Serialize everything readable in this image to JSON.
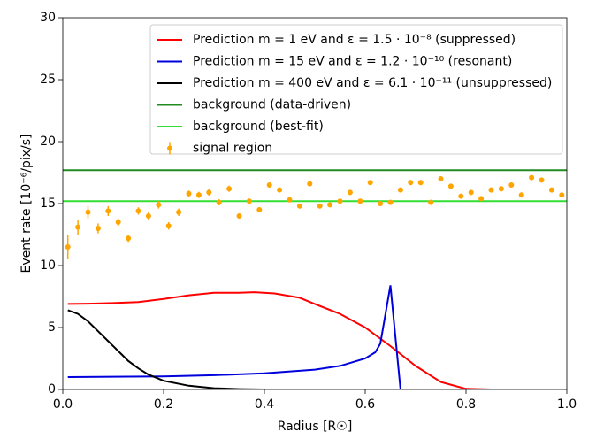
{
  "chart_data": {
    "type": "line",
    "xlabel": "Radius [R☉]",
    "ylabel": "Event rate [10⁻⁶/pix/s]",
    "xlim": [
      0,
      1
    ],
    "ylim": [
      0,
      30
    ],
    "xticks": [
      {
        "value": 0,
        "label": "0.0"
      },
      0.2,
      0.4,
      0.6,
      0.8,
      {
        "value": 1,
        "label": "1.0"
      }
    ],
    "yticks": [
      0,
      5,
      10,
      15,
      20,
      25,
      30
    ],
    "legend": "upper right",
    "series": [
      {
        "name": "Prediction m = 1 eV and ε = 1.5 · 10⁻⁸ (suppressed)",
        "color": "#ff0000",
        "x": [
          0.01,
          0.05,
          0.1,
          0.15,
          0.2,
          0.25,
          0.3,
          0.35,
          0.38,
          0.42,
          0.47,
          0.5,
          0.55,
          0.6,
          0.65,
          0.7,
          0.75,
          0.8,
          0.85,
          1.0
        ],
        "values": [
          6.9,
          6.92,
          6.97,
          7.05,
          7.3,
          7.6,
          7.8,
          7.8,
          7.85,
          7.75,
          7.4,
          6.9,
          6.1,
          5.0,
          3.5,
          1.9,
          0.6,
          0.05,
          0,
          0
        ]
      },
      {
        "name": "Prediction m = 15 eV and ε = 1.2 · 10⁻¹⁰ (resonant)",
        "color": "#0000dd",
        "x": [
          0.01,
          0.2,
          0.3,
          0.4,
          0.5,
          0.55,
          0.6,
          0.62,
          0.63,
          0.65,
          0.67
        ],
        "values": [
          1.0,
          1.05,
          1.15,
          1.3,
          1.6,
          1.9,
          2.5,
          3.0,
          3.7,
          8.4,
          0
        ]
      },
      {
        "name": "Prediction m = 400 eV and ε = 6.1 · 10⁻¹¹ (unsuppressed)",
        "color": "#000000",
        "x": [
          0.01,
          0.03,
          0.05,
          0.07,
          0.09,
          0.11,
          0.13,
          0.15,
          0.17,
          0.2,
          0.25,
          0.3,
          0.35,
          0.4,
          1.0
        ],
        "values": [
          6.4,
          6.1,
          5.5,
          4.7,
          3.9,
          3.1,
          2.3,
          1.7,
          1.2,
          0.7,
          0.3,
          0.1,
          0.03,
          0,
          0
        ]
      },
      {
        "name": "background (data-driven)",
        "color": "#228b22",
        "x": [
          0,
          1
        ],
        "values": [
          17.7,
          17.7
        ]
      },
      {
        "name": "background (best-fit)",
        "color": "#33dd33",
        "x": [
          0,
          1
        ],
        "values": [
          15.2,
          15.2
        ]
      },
      {
        "name": "signal region",
        "color": "#ffa500",
        "kind": "errorbar",
        "x": [
          0.01,
          0.03,
          0.05,
          0.07,
          0.09,
          0.11,
          0.13,
          0.15,
          0.17,
          0.19,
          0.21,
          0.23,
          0.25,
          0.27,
          0.29,
          0.31,
          0.33,
          0.35,
          0.37,
          0.39,
          0.41,
          0.43,
          0.45,
          0.47,
          0.49,
          0.51,
          0.53,
          0.55,
          0.57,
          0.59,
          0.61,
          0.63,
          0.65,
          0.67,
          0.69,
          0.71,
          0.73,
          0.75,
          0.77,
          0.79,
          0.81,
          0.83,
          0.85,
          0.87,
          0.89,
          0.91,
          0.93,
          0.95,
          0.97,
          0.99
        ],
        "values": [
          11.5,
          13.1,
          14.3,
          13.0,
          14.4,
          13.5,
          12.2,
          14.4,
          14.0,
          14.9,
          13.2,
          14.3,
          15.8,
          15.7,
          15.9,
          15.1,
          16.2,
          14.0,
          15.2,
          14.5,
          16.5,
          16.1,
          15.3,
          14.8,
          16.6,
          14.8,
          14.9,
          15.2,
          15.9,
          15.2,
          16.7,
          15.0,
          15.1,
          16.1,
          16.7,
          16.7,
          15.1,
          17.0,
          16.4,
          15.6,
          15.9,
          15.4,
          16.1,
          16.2,
          16.5,
          15.7,
          17.1,
          16.9,
          16.1,
          15.7
        ],
        "errors": [
          1.0,
          0.6,
          0.5,
          0.4,
          0.4,
          0.3,
          0.3,
          0.3,
          0.3,
          0.3,
          0.3,
          0.3,
          0.25,
          0.25,
          0.25,
          0.25,
          0.25,
          0.2,
          0.2,
          0.2,
          0.2,
          0.2,
          0.2,
          0.2,
          0.2,
          0.2,
          0.2,
          0.2,
          0.2,
          0.2,
          0.2,
          0.2,
          0.2,
          0.2,
          0.2,
          0.2,
          0.2,
          0.2,
          0.2,
          0.2,
          0.2,
          0.2,
          0.2,
          0.2,
          0.2,
          0.2,
          0.2,
          0.2,
          0.2,
          0.2
        ]
      }
    ]
  }
}
